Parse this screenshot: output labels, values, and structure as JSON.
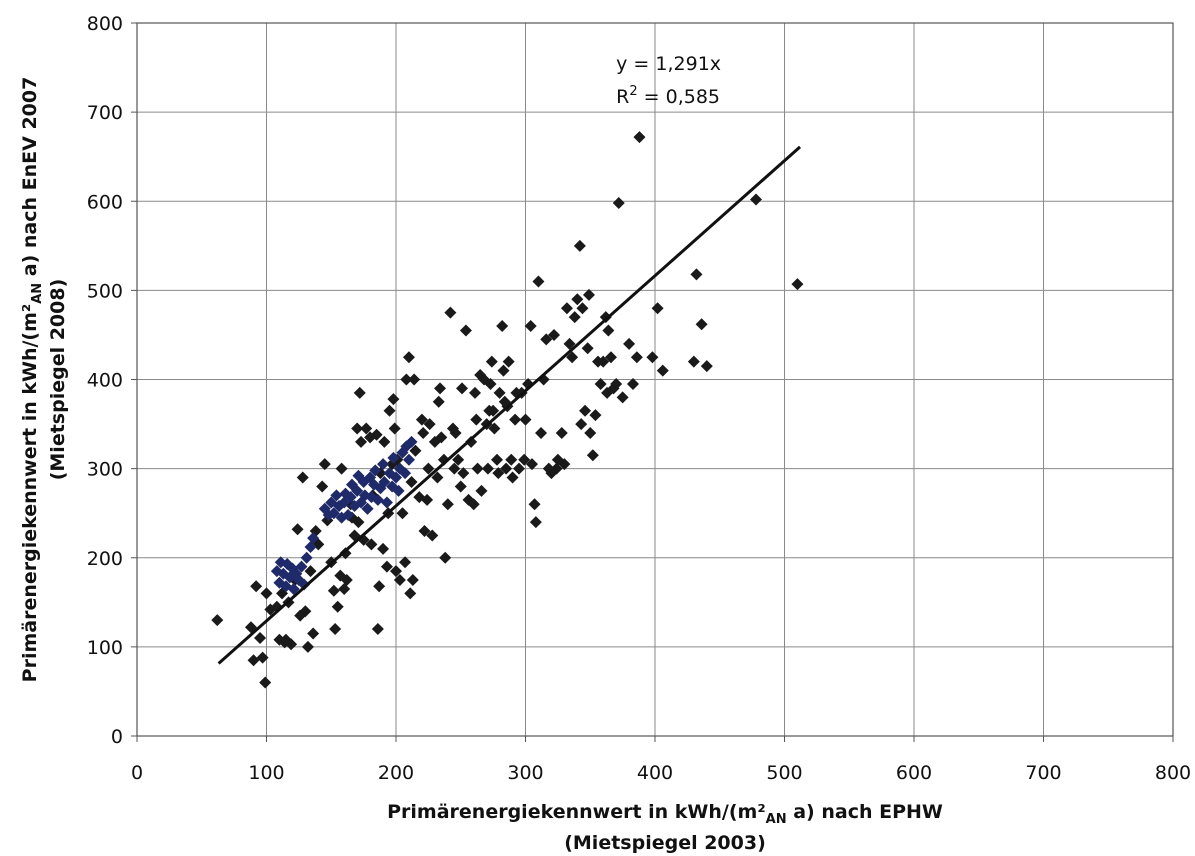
{
  "chart_data": {
    "type": "scatter",
    "xlabel_line1": "Primärenergiekennwert in kWh/(m²",
    "xlabel_sub": "AN",
    "xlabel_line1_end": " a) nach EPHW",
    "xlabel_line2": "(Mietspiegel 2003)",
    "ylabel_line1": "Primärenergiekennwert in kWh/(m²",
    "ylabel_sub": "AN",
    "ylabel_line1_end": " a) nach EnEV 2007",
    "ylabel_line2": "(Mietspiegel 2008)",
    "xlim": [
      0,
      800
    ],
    "ylim": [
      0,
      800
    ],
    "xticks": [
      "0",
      "100",
      "200",
      "300",
      "400",
      "500",
      "600",
      "700",
      "800"
    ],
    "yticks": [
      "0",
      "100",
      "200",
      "300",
      "400",
      "500",
      "600",
      "700",
      "800"
    ],
    "grid": true,
    "annotation": {
      "equation": "y = 1,291x",
      "r2_prefix": "R",
      "r2_sup": "2",
      "r2_value": " = 0,585",
      "x": 370,
      "y": 747
    },
    "trendline": {
      "slope": 1.291,
      "x_start": 63,
      "x_end": 512,
      "color": "#111111"
    },
    "colors": {
      "black_series": "#1a1a1a",
      "blue_series": "#1f2a6b"
    },
    "series": [
      {
        "color_key": "black_series",
        "points": [
          [
            62,
            130
          ],
          [
            88,
            122
          ],
          [
            90,
            85
          ],
          [
            92,
            168
          ],
          [
            95,
            110
          ],
          [
            97,
            88
          ],
          [
            99,
            60
          ],
          [
            100,
            160
          ],
          [
            103,
            142
          ],
          [
            108,
            145
          ],
          [
            110,
            108
          ],
          [
            112,
            160
          ],
          [
            114,
            105
          ],
          [
            115,
            108
          ],
          [
            117,
            150
          ],
          [
            119,
            103
          ],
          [
            122,
            175
          ],
          [
            124,
            232
          ],
          [
            126,
            135
          ],
          [
            128,
            290
          ],
          [
            130,
            140
          ],
          [
            132,
            100
          ],
          [
            134,
            185
          ],
          [
            136,
            115
          ],
          [
            138,
            230
          ],
          [
            140,
            215
          ],
          [
            143,
            280
          ],
          [
            145,
            305
          ],
          [
            147,
            242
          ],
          [
            150,
            195
          ],
          [
            152,
            163
          ],
          [
            153,
            120
          ],
          [
            155,
            145
          ],
          [
            157,
            180
          ],
          [
            158,
            300
          ],
          [
            160,
            165
          ],
          [
            161,
            205
          ],
          [
            162,
            175
          ],
          [
            165,
            260
          ],
          [
            166,
            245
          ],
          [
            168,
            225
          ],
          [
            170,
            345
          ],
          [
            171,
            240
          ],
          [
            172,
            385
          ],
          [
            173,
            330
          ],
          [
            175,
            220
          ],
          [
            177,
            345
          ],
          [
            178,
            255
          ],
          [
            180,
            335
          ],
          [
            181,
            215
          ],
          [
            182,
            270
          ],
          [
            185,
            338
          ],
          [
            186,
            120
          ],
          [
            187,
            168
          ],
          [
            188,
            295
          ],
          [
            190,
            210
          ],
          [
            191,
            330
          ],
          [
            193,
            190
          ],
          [
            194,
            250
          ],
          [
            195,
            365
          ],
          [
            197,
            305
          ],
          [
            198,
            378
          ],
          [
            199,
            345
          ],
          [
            200,
            185
          ],
          [
            201,
            310
          ],
          [
            203,
            175
          ],
          [
            205,
            250
          ],
          [
            207,
            195
          ],
          [
            208,
            400
          ],
          [
            210,
            425
          ],
          [
            211,
            160
          ],
          [
            212,
            285
          ],
          [
            213,
            175
          ],
          [
            214,
            400
          ],
          [
            215,
            320
          ],
          [
            218,
            268
          ],
          [
            220,
            355
          ],
          [
            221,
            340
          ],
          [
            222,
            230
          ],
          [
            224,
            265
          ],
          [
            225,
            300
          ],
          [
            226,
            350
          ],
          [
            228,
            225
          ],
          [
            230,
            330
          ],
          [
            232,
            290
          ],
          [
            233,
            375
          ],
          [
            234,
            390
          ],
          [
            235,
            335
          ],
          [
            237,
            310
          ],
          [
            238,
            200
          ],
          [
            240,
            260
          ],
          [
            242,
            475
          ],
          [
            244,
            345
          ],
          [
            245,
            300
          ],
          [
            246,
            340
          ],
          [
            248,
            310
          ],
          [
            250,
            280
          ],
          [
            251,
            390
          ],
          [
            252,
            295
          ],
          [
            254,
            455
          ],
          [
            256,
            265
          ],
          [
            258,
            330
          ],
          [
            260,
            260
          ],
          [
            261,
            385
          ],
          [
            262,
            355
          ],
          [
            263,
            300
          ],
          [
            265,
            405
          ],
          [
            266,
            275
          ],
          [
            268,
            400
          ],
          [
            270,
            350
          ],
          [
            271,
            300
          ],
          [
            272,
            365
          ],
          [
            273,
            395
          ],
          [
            274,
            420
          ],
          [
            275,
            365
          ],
          [
            276,
            345
          ],
          [
            278,
            310
          ],
          [
            279,
            295
          ],
          [
            280,
            385
          ],
          [
            282,
            460
          ],
          [
            283,
            410
          ],
          [
            284,
            375
          ],
          [
            285,
            300
          ],
          [
            286,
            370
          ],
          [
            287,
            420
          ],
          [
            289,
            310
          ],
          [
            290,
            290
          ],
          [
            292,
            355
          ],
          [
            293,
            385
          ],
          [
            295,
            300
          ],
          [
            297,
            385
          ],
          [
            299,
            310
          ],
          [
            300,
            355
          ],
          [
            302,
            395
          ],
          [
            304,
            460
          ],
          [
            305,
            305
          ],
          [
            307,
            260
          ],
          [
            308,
            240
          ],
          [
            310,
            510
          ],
          [
            312,
            340
          ],
          [
            314,
            400
          ],
          [
            316,
            445
          ],
          [
            318,
            300
          ],
          [
            320,
            295
          ],
          [
            322,
            450
          ],
          [
            324,
            300
          ],
          [
            325,
            310
          ],
          [
            328,
            340
          ],
          [
            330,
            305
          ],
          [
            332,
            480
          ],
          [
            334,
            440
          ],
          [
            336,
            425
          ],
          [
            338,
            470
          ],
          [
            340,
            490
          ],
          [
            342,
            550
          ],
          [
            343,
            350
          ],
          [
            344,
            480
          ],
          [
            346,
            365
          ],
          [
            348,
            435
          ],
          [
            349,
            495
          ],
          [
            350,
            340
          ],
          [
            352,
            315
          ],
          [
            354,
            360
          ],
          [
            356,
            420
          ],
          [
            358,
            395
          ],
          [
            360,
            420
          ],
          [
            362,
            470
          ],
          [
            363,
            385
          ],
          [
            364,
            455
          ],
          [
            366,
            425
          ],
          [
            368,
            390
          ],
          [
            370,
            395
          ],
          [
            372,
            598
          ],
          [
            375,
            380
          ],
          [
            380,
            440
          ],
          [
            383,
            395
          ],
          [
            386,
            425
          ],
          [
            388,
            672
          ],
          [
            398,
            425
          ],
          [
            402,
            480
          ],
          [
            406,
            410
          ],
          [
            430,
            420
          ],
          [
            432,
            518
          ],
          [
            436,
            462
          ],
          [
            440,
            415
          ],
          [
            478,
            602
          ],
          [
            510,
            507
          ]
        ]
      },
      {
        "color_key": "blue_series",
        "points": [
          [
            108,
            185
          ],
          [
            110,
            172
          ],
          [
            111,
            195
          ],
          [
            113,
            182
          ],
          [
            115,
            168
          ],
          [
            116,
            193
          ],
          [
            118,
            178
          ],
          [
            120,
            188
          ],
          [
            121,
            165
          ],
          [
            123,
            182
          ],
          [
            125,
            175
          ],
          [
            127,
            190
          ],
          [
            129,
            170
          ],
          [
            131,
            200
          ],
          [
            134,
            212
          ],
          [
            136,
            222
          ],
          [
            145,
            255
          ],
          [
            148,
            248
          ],
          [
            150,
            262
          ],
          [
            152,
            250
          ],
          [
            154,
            270
          ],
          [
            156,
            258
          ],
          [
            158,
            245
          ],
          [
            160,
            262
          ],
          [
            161,
            272
          ],
          [
            163,
            248
          ],
          [
            165,
            268
          ],
          [
            166,
            282
          ],
          [
            168,
            258
          ],
          [
            170,
            275
          ],
          [
            171,
            292
          ],
          [
            173,
            262
          ],
          [
            175,
            285
          ],
          [
            176,
            270
          ],
          [
            178,
            255
          ],
          [
            180,
            290
          ],
          [
            181,
            268
          ],
          [
            183,
            282
          ],
          [
            184,
            298
          ],
          [
            186,
            265
          ],
          [
            188,
            278
          ],
          [
            190,
            305
          ],
          [
            191,
            285
          ],
          [
            193,
            262
          ],
          [
            195,
            295
          ],
          [
            197,
            280
          ],
          [
            198,
            312
          ],
          [
            200,
            290
          ],
          [
            202,
            275
          ],
          [
            203,
            300
          ],
          [
            205,
            318
          ],
          [
            207,
            295
          ],
          [
            208,
            325
          ],
          [
            210,
            310
          ],
          [
            212,
            330
          ]
        ]
      }
    ]
  }
}
